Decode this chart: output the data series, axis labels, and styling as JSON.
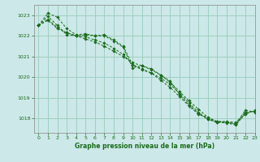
{
  "title": "Graphe pression niveau de la mer (hPa)",
  "bg_color": "#cce8e8",
  "grid_color": "#99ccbb",
  "line_color": "#1a6b1a",
  "axis_color": "#888888",
  "xlim": [
    -0.5,
    23
  ],
  "ylim": [
    1017.3,
    1023.5
  ],
  "yticks": [
    1018,
    1019,
    1020,
    1021,
    1022,
    1023
  ],
  "xticks": [
    0,
    1,
    2,
    3,
    4,
    5,
    6,
    7,
    8,
    9,
    10,
    11,
    12,
    13,
    14,
    15,
    16,
    17,
    18,
    19,
    20,
    21,
    22,
    23
  ],
  "series": [
    [
      1022.5,
      1022.8,
      1022.4,
      1022.15,
      1022.0,
      1021.85,
      1021.7,
      1021.5,
      1021.25,
      1021.0,
      1020.7,
      1020.55,
      1020.35,
      1020.1,
      1019.75,
      1019.3,
      1018.85,
      1018.45,
      1018.05,
      1017.85,
      1017.85,
      1017.8,
      1018.3,
      1018.35
    ],
    [
      1022.5,
      1023.1,
      1022.9,
      1022.35,
      1022.05,
      1022.1,
      1022.0,
      1022.0,
      1021.75,
      1021.45,
      1020.45,
      1020.55,
      1020.4,
      1020.1,
      1019.8,
      1019.15,
      1018.65,
      1018.25,
      1017.95,
      1017.85,
      1017.8,
      1017.75,
      1018.2,
      1018.4
    ],
    [
      1022.5,
      1022.95,
      1022.5,
      1022.05,
      1022.0,
      1022.05,
      1022.0,
      1022.05,
      1021.8,
      1021.5,
      1020.6,
      1020.35,
      1020.2,
      1019.95,
      1019.65,
      1019.2,
      1018.75,
      1018.3,
      1017.95,
      1017.8,
      1017.82,
      1017.72,
      1018.4,
      1018.3
    ],
    [
      1022.5,
      1022.75,
      1022.35,
      1022.15,
      1022.0,
      1021.95,
      1021.8,
      1021.65,
      1021.4,
      1021.1,
      1020.6,
      1020.4,
      1020.2,
      1019.85,
      1019.5,
      1019.05,
      1018.6,
      1018.2,
      1018.05,
      1017.82,
      1017.78,
      1017.68,
      1018.25,
      1018.35
    ]
  ]
}
